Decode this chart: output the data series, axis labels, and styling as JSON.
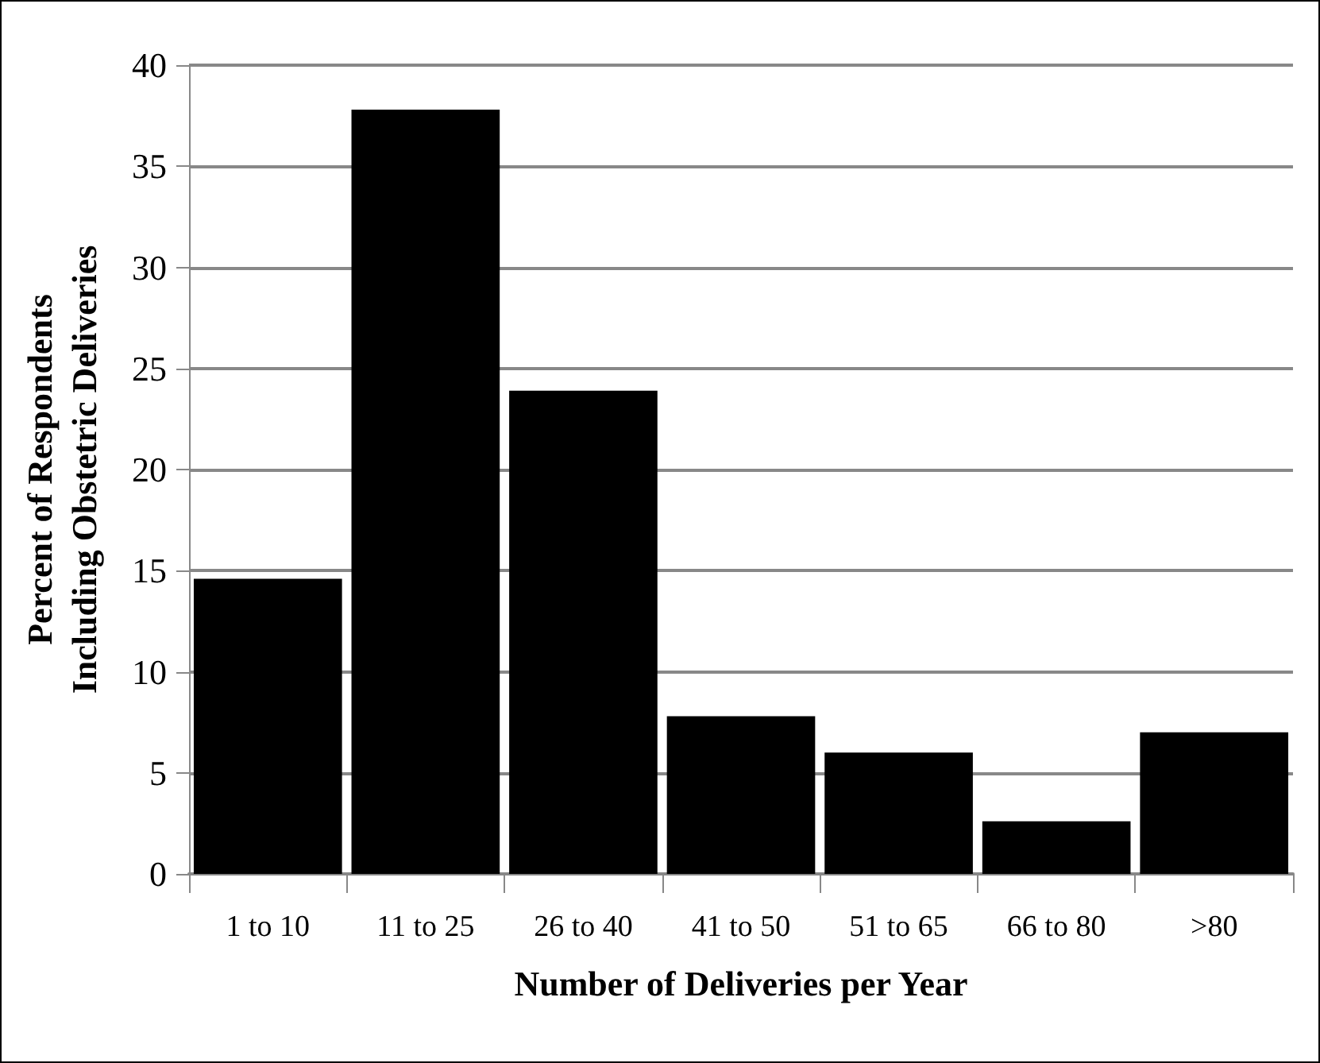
{
  "chart_data": {
    "type": "bar",
    "xlabel": "Number of Deliveries per Year",
    "ylabel": "Percent of Respondents\nIncluding Obstetric Deliveries",
    "categories": [
      "1 to 10",
      "11 to 25",
      "26 to 40",
      "41 to 50",
      "51 to 65",
      "66 to 80",
      ">80"
    ],
    "values": [
      14.6,
      37.8,
      23.9,
      7.8,
      6.0,
      2.6,
      7.0
    ],
    "color": "#000000",
    "ylim": [
      0,
      40
    ],
    "yticks": [
      0,
      5,
      10,
      15,
      20,
      25,
      30,
      35,
      40
    ],
    "grid": "y"
  }
}
